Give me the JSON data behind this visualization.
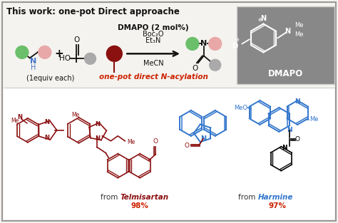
{
  "title": "This work: one-pot Direct approache",
  "bg_color": "#f5f3ef",
  "border_color": "#999999",
  "dmapo_box_color": "#888888",
  "green_color": "#6bbf6b",
  "pink_color": "#e8a8a8",
  "gray_color": "#aaaaaa",
  "darkred_color": "#8b1010",
  "blue_color": "#4477cc",
  "tel_color": "#8b1010",
  "har_color": "#3377cc",
  "red_color": "#cc2200",
  "black": "#111111",
  "white": "#ffffff",
  "catalyst_label": "DMAPO (2 mol%)",
  "boc_label": "Boc₂O",
  "et3n_label": "Et₃N",
  "mecn_label": "MeCN",
  "scheme_label": "one-pot direct N-acylation",
  "equiv_label": "(1equiv each)",
  "dmapo_text": "DMAPO",
  "from_tel": "from ",
  "tel_name": "Telmisartan",
  "tel_pct": "98%",
  "from_har": "from ",
  "har_name": "Harmine",
  "har_pct": "97%"
}
